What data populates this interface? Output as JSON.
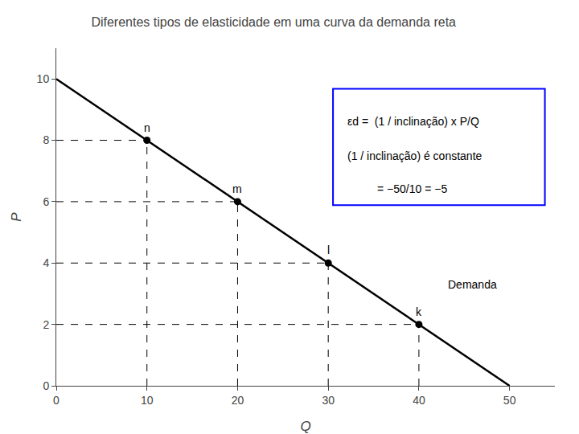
{
  "chart_data": {
    "type": "line",
    "title": "Diferentes tipos de elasticidade em uma curva da demanda reta",
    "xlabel": "Q",
    "ylabel": "P",
    "xlim": [
      0,
      55
    ],
    "ylim": [
      0,
      11
    ],
    "xticks": [
      0,
      10,
      20,
      30,
      40,
      50
    ],
    "yticks": [
      0,
      2,
      4,
      6,
      8,
      10
    ],
    "grid": false,
    "series": [
      {
        "type": "line",
        "x": [
          0,
          50
        ],
        "values": [
          10,
          0
        ],
        "color": "#000000",
        "line_style": "solid"
      },
      {
        "type": "scatter",
        "x": [
          10,
          20,
          30,
          40
        ],
        "values": [
          8,
          6,
          4,
          2
        ],
        "color": "#000000",
        "marker": "circle",
        "line_style": "dashed"
      }
    ],
    "annotations": [
      {
        "text": "n",
        "x": 10,
        "y": 8
      },
      {
        "text": "m",
        "x": 20,
        "y": 6
      },
      {
        "text": "l",
        "x": 30,
        "y": 4
      },
      {
        "text": "k",
        "x": 40,
        "y": 2
      },
      {
        "text": "Demanda",
        "x": 43,
        "y": 3.3
      },
      {
        "text": "εd =  (1 / inclinação) x P/Q"
      },
      {
        "text": "(1 / inclinação) é constante"
      },
      {
        "text": "= −50/10 = −5"
      }
    ]
  }
}
